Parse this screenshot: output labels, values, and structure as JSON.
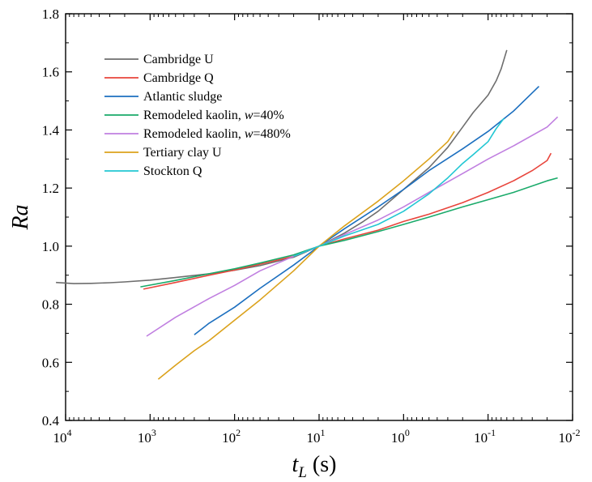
{
  "chart_data": {
    "type": "line",
    "title": "",
    "xlabel": {
      "main": "t",
      "sub": "L",
      "unit": " (s)"
    },
    "ylabel": "Ra",
    "xscale": "log",
    "xreversed": true,
    "xlim": [
      10000,
      0.01
    ],
    "ylim": [
      0.4,
      1.8
    ],
    "grid": false,
    "legend_position": "top-left",
    "xticks": [
      {
        "base": "10",
        "exp": "4",
        "value": 10000
      },
      {
        "base": "10",
        "exp": "3",
        "value": 1000
      },
      {
        "base": "10",
        "exp": "2",
        "value": 100
      },
      {
        "base": "10",
        "exp": "1",
        "value": 10
      },
      {
        "base": "10",
        "exp": "0",
        "value": 1
      },
      {
        "base": "10",
        "exp": "-1",
        "value": 0.1
      },
      {
        "base": "10",
        "exp": "-2",
        "value": 0.01
      }
    ],
    "yticks": [
      "0.4",
      "0.6",
      "0.8",
      "1.0",
      "1.2",
      "1.4",
      "1.6",
      "1.8"
    ],
    "series": [
      {
        "name": "Cambridge U",
        "legend": [
          "Cambridge U"
        ],
        "color": "#6e6e6e",
        "x": [
          13000,
          8000,
          5000,
          3000,
          2000,
          1000,
          500,
          200,
          100,
          50,
          20,
          10,
          5,
          3,
          2,
          1,
          0.5,
          0.3,
          0.2,
          0.15,
          0.1,
          0.08,
          0.07,
          0.06
        ],
        "y": [
          0.875,
          0.871,
          0.872,
          0.874,
          0.877,
          0.883,
          0.892,
          0.905,
          0.917,
          0.933,
          0.962,
          1.0,
          1.045,
          1.085,
          1.12,
          1.195,
          1.27,
          1.34,
          1.41,
          1.46,
          1.52,
          1.57,
          1.61,
          1.675
        ]
      },
      {
        "name": "Cambridge Q",
        "legend": [
          "Cambridge Q"
        ],
        "color": "#e8453c",
        "x": [
          1200,
          500,
          200,
          100,
          50,
          20,
          10,
          5,
          2,
          1,
          0.5,
          0.2,
          0.1,
          0.05,
          0.03,
          0.02,
          0.018
        ],
        "y": [
          0.852,
          0.875,
          0.9,
          0.918,
          0.938,
          0.965,
          1.0,
          1.025,
          1.055,
          1.085,
          1.11,
          1.15,
          1.185,
          1.225,
          1.26,
          1.295,
          1.32
        ]
      },
      {
        "name": "Atlantic sludge",
        "legend": [
          "Atlantic sludge"
        ],
        "color": "#1c6fbf",
        "x": [
          300,
          200,
          100,
          50,
          20,
          10,
          5,
          2,
          1,
          0.5,
          0.2,
          0.1,
          0.05,
          0.025
        ],
        "y": [
          0.695,
          0.735,
          0.79,
          0.855,
          0.935,
          1.0,
          1.06,
          1.135,
          1.195,
          1.26,
          1.335,
          1.395,
          1.465,
          1.55
        ]
      },
      {
        "name": "Remodeled kaolin, w=40%",
        "legend": [
          "Remodeled kaolin, ",
          "w",
          "=40%"
        ],
        "color": "#1aaa6a",
        "x": [
          1300,
          500,
          200,
          100,
          50,
          20,
          10,
          5,
          2,
          1,
          0.5,
          0.2,
          0.1,
          0.05,
          0.02,
          0.015
        ],
        "y": [
          0.86,
          0.882,
          0.905,
          0.922,
          0.942,
          0.97,
          1.0,
          1.02,
          1.05,
          1.075,
          1.1,
          1.135,
          1.16,
          1.185,
          1.225,
          1.235
        ]
      },
      {
        "name": "Remodeled kaolin, w=480%",
        "legend": [
          "Remodeled kaolin, ",
          "w",
          "=480%"
        ],
        "color": "#c07fe0",
        "x": [
          1100,
          500,
          200,
          100,
          50,
          20,
          10,
          5,
          2,
          1,
          0.5,
          0.2,
          0.1,
          0.05,
          0.02,
          0.015
        ],
        "y": [
          0.69,
          0.755,
          0.82,
          0.865,
          0.915,
          0.965,
          1.0,
          1.04,
          1.09,
          1.135,
          1.185,
          1.25,
          1.3,
          1.345,
          1.41,
          1.445
        ]
      },
      {
        "name": "Tertiary clay U",
        "legend": [
          "Tertiary clay U"
        ],
        "color": "#dba21c",
        "x": [
          800,
          500,
          300,
          200,
          100,
          50,
          20,
          10,
          5,
          2,
          1,
          0.5,
          0.3,
          0.25
        ],
        "y": [
          0.542,
          0.59,
          0.64,
          0.675,
          0.745,
          0.815,
          0.915,
          1.0,
          1.07,
          1.155,
          1.225,
          1.3,
          1.36,
          1.395
        ]
      },
      {
        "name": "Stockton Q",
        "legend": [
          "Stockton Q"
        ],
        "color": "#22c7d3",
        "x": [
          20,
          10,
          5,
          2,
          1,
          0.5,
          0.3,
          0.2,
          0.15,
          0.1,
          0.08,
          0.065
        ],
        "y": [
          0.965,
          1.0,
          1.035,
          1.075,
          1.12,
          1.18,
          1.235,
          1.285,
          1.315,
          1.36,
          1.405,
          1.44
        ]
      }
    ]
  }
}
